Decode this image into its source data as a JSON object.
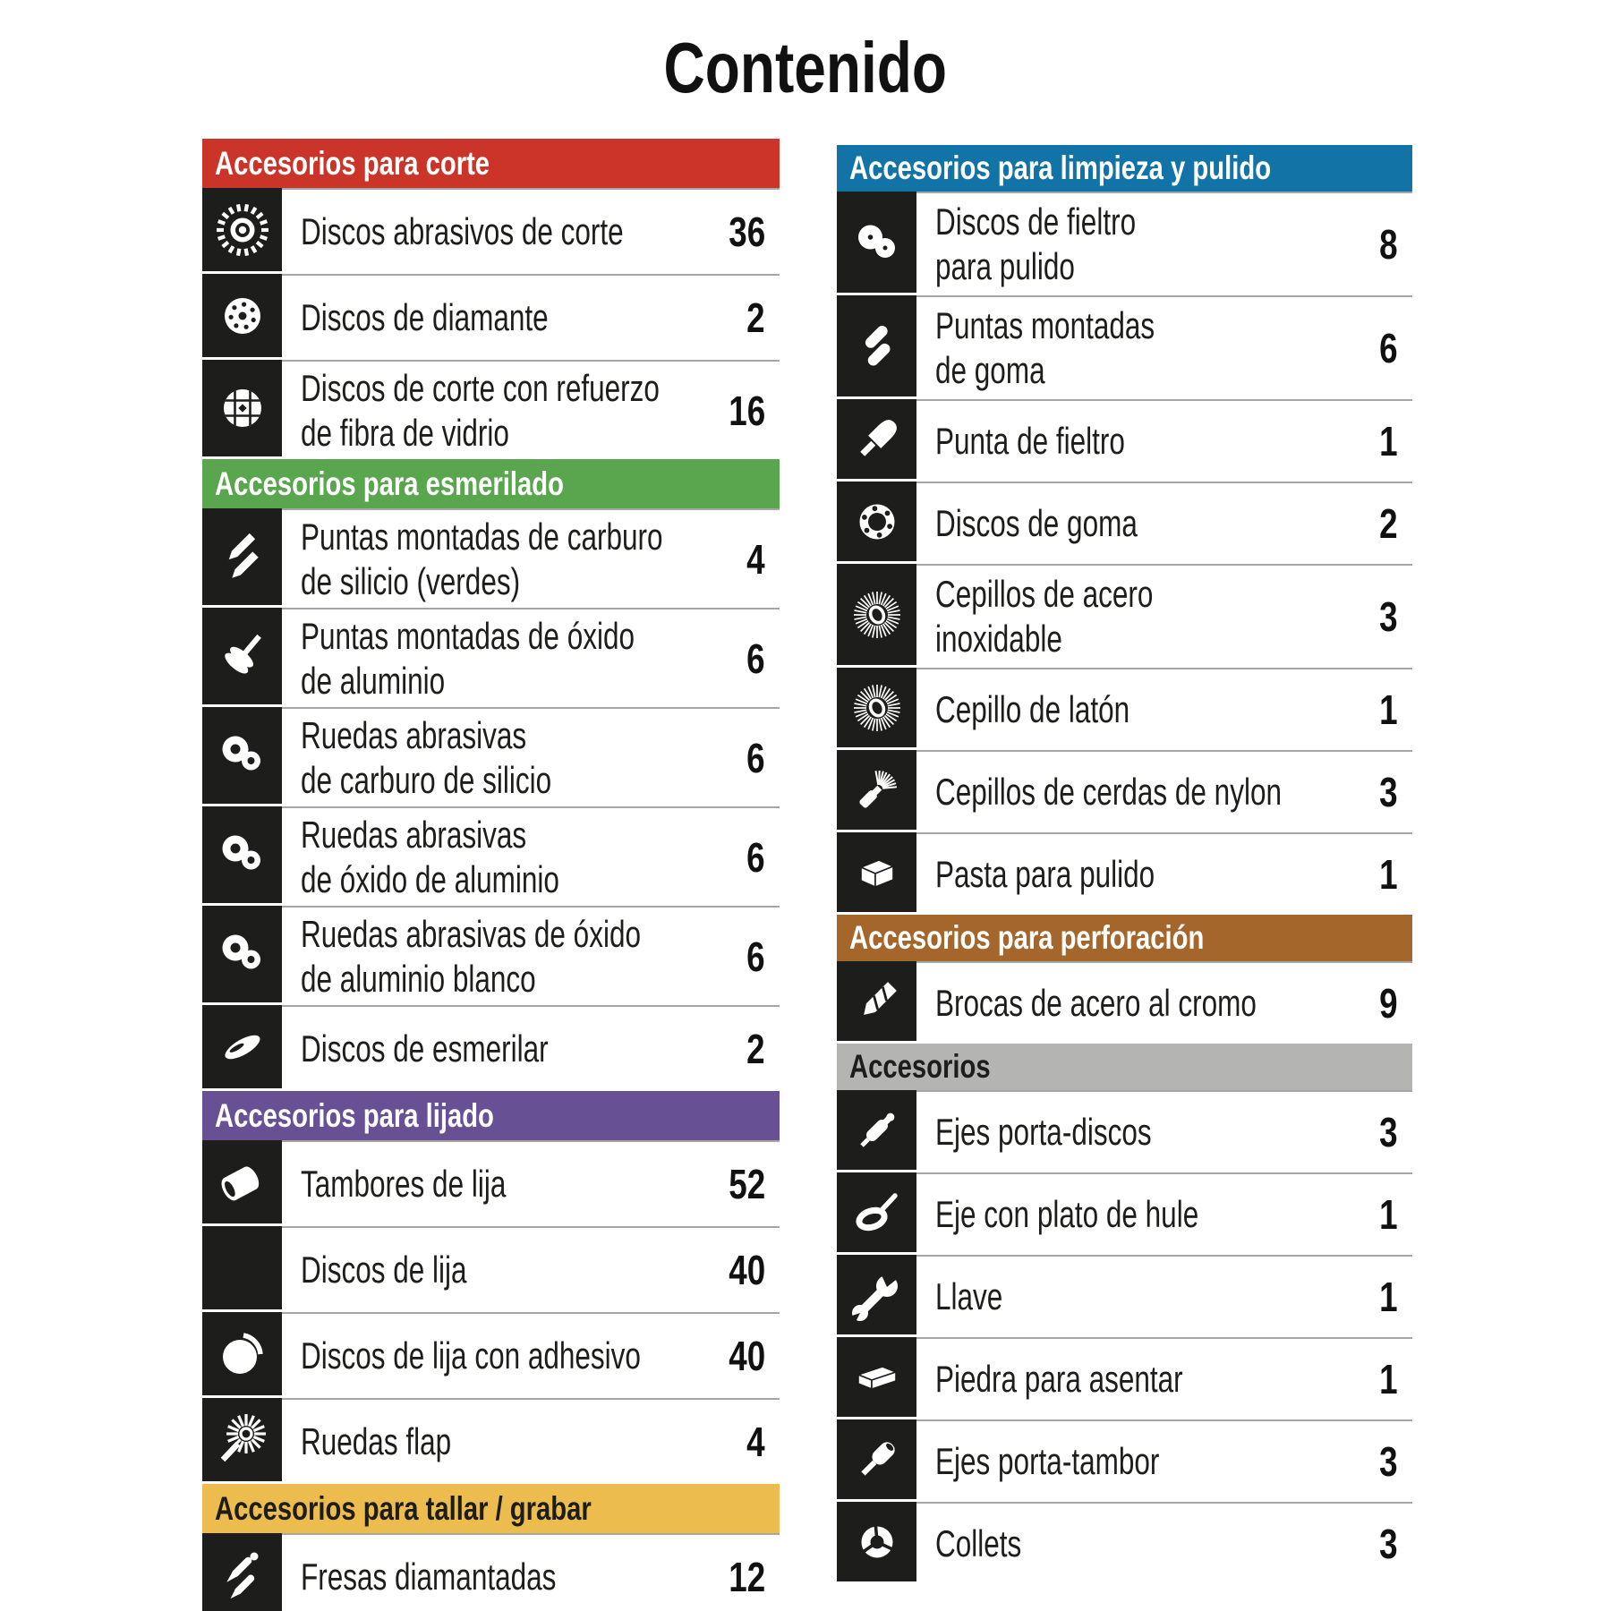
{
  "title": "Contenido",
  "columns": [
    {
      "name": "left",
      "sections": [
        {
          "header": {
            "label": "Accesorios para corte",
            "bg": "#cb3428",
            "fg": "#ffffff"
          },
          "items": [
            {
              "icon": "cutting-disc-icon",
              "label_lines": [
                "Discos abrasivos de corte"
              ],
              "qty": "36"
            },
            {
              "icon": "diamond-disc-icon",
              "label_lines": [
                "Discos de diamante"
              ],
              "qty": "2"
            },
            {
              "icon": "fiberglass-disc-icon",
              "label_lines": [
                "Discos de corte con refuerzo",
                "de fibra de vidrio"
              ],
              "qty": "16"
            }
          ]
        },
        {
          "header": {
            "label": "Accesorios para esmerilado",
            "bg": "#5aa64f",
            "fg": "#ffffff"
          },
          "items": [
            {
              "icon": "silicon-carbide-points-icon",
              "label_lines": [
                "Puntas montadas de carburo",
                "de silicio (verdes)"
              ],
              "qty": "4"
            },
            {
              "icon": "aluminum-oxide-point-icon",
              "label_lines": [
                "Puntas montadas de óxido",
                "de aluminio"
              ],
              "qty": "6"
            },
            {
              "icon": "abrasive-wheels-icon",
              "label_lines": [
                "Ruedas abrasivas",
                "de carburo de silicio"
              ],
              "qty": "6"
            },
            {
              "icon": "abrasive-wheels-icon",
              "label_lines": [
                "Ruedas abrasivas",
                "de óxido de aluminio"
              ],
              "qty": "6"
            },
            {
              "icon": "abrasive-wheels-icon",
              "label_lines": [
                "Ruedas abrasivas de óxido",
                "de aluminio blanco"
              ],
              "qty": "6"
            },
            {
              "icon": "grinding-disc-icon",
              "label_lines": [
                "Discos de esmerilar"
              ],
              "qty": "2"
            }
          ]
        },
        {
          "header": {
            "label": "Accesorios para lijado",
            "bg": "#675093",
            "fg": "#ffffff"
          },
          "items": [
            {
              "icon": "sanding-drum-icon",
              "label_lines": [
                "Tambores de lija"
              ],
              "qty": "52"
            },
            {
              "icon": "sanding-discs-icon",
              "label_lines": [
                "Discos de lija"
              ],
              "qty": "40"
            },
            {
              "icon": "adhesive-sanding-disc-icon",
              "label_lines": [
                "Discos de lija con adhesivo"
              ],
              "qty": "40"
            },
            {
              "icon": "flap-wheel-icon",
              "label_lines": [
                "Ruedas flap"
              ],
              "qty": "4"
            }
          ]
        },
        {
          "header": {
            "label": "Accesorios para tallar / grabar",
            "bg": "#edbc4f",
            "fg": "#1d1d1b"
          },
          "items": [
            {
              "icon": "diamond-burrs-icon",
              "label_lines": [
                "Fresas diamantadas"
              ],
              "qty": "12"
            }
          ]
        }
      ]
    },
    {
      "name": "right",
      "sections": [
        {
          "header": {
            "label": "Accesorios para limpieza y pulido",
            "bg": "#1273a6",
            "fg": "#ffffff"
          },
          "items": [
            {
              "icon": "felt-discs-icon",
              "label_lines": [
                "Discos de fieltro",
                "para pulido"
              ],
              "qty": "8"
            },
            {
              "icon": "rubber-points-icon",
              "label_lines": [
                "Puntas montadas",
                "de goma"
              ],
              "qty": "6"
            },
            {
              "icon": "felt-point-icon",
              "label_lines": [
                "Punta de fieltro"
              ],
              "qty": "1"
            },
            {
              "icon": "rubber-discs-icon",
              "label_lines": [
                "Discos de goma"
              ],
              "qty": "2"
            },
            {
              "icon": "stainless-brush-icon",
              "label_lines": [
                "Cepillos de acero",
                "inoxidable"
              ],
              "qty": "3"
            },
            {
              "icon": "brass-brush-icon",
              "label_lines": [
                "Cepillo de latón"
              ],
              "qty": "1"
            },
            {
              "icon": "nylon-brush-icon",
              "label_lines": [
                "Cepillos de cerdas de nylon"
              ],
              "qty": "3"
            },
            {
              "icon": "polishing-paste-icon",
              "label_lines": [
                "Pasta para pulido"
              ],
              "qty": "1"
            }
          ]
        },
        {
          "header": {
            "label": "Accesorios para perforación",
            "bg": "#a4662b",
            "fg": "#ffffff"
          },
          "items": [
            {
              "icon": "drill-bit-icon",
              "label_lines": [
                "Brocas de acero al cromo"
              ],
              "qty": "9"
            }
          ]
        },
        {
          "header": {
            "label": "Accesorios",
            "bg": "#b4b4b3",
            "fg": "#1d1d1b"
          },
          "items": [
            {
              "icon": "disc-mandrel-icon",
              "label_lines": [
                "Ejes porta-discos"
              ],
              "qty": "3"
            },
            {
              "icon": "rubber-pad-mandrel-icon",
              "label_lines": [
                "Eje con plato de hule"
              ],
              "qty": "1"
            },
            {
              "icon": "wrench-icon",
              "label_lines": [
                "Llave"
              ],
              "qty": "1"
            },
            {
              "icon": "sharpening-stone-icon",
              "label_lines": [
                "Piedra para asentar"
              ],
              "qty": "1"
            },
            {
              "icon": "drum-mandrel-icon",
              "label_lines": [
                "Ejes porta-tambor"
              ],
              "qty": "3"
            },
            {
              "icon": "collets-icon",
              "label_lines": [
                "Collets"
              ],
              "qty": "3"
            }
          ]
        }
      ]
    }
  ],
  "palette": {
    "icon_background": "#1d1d1b",
    "divider": "#a6a6a6",
    "text": "#1d1d1b"
  }
}
